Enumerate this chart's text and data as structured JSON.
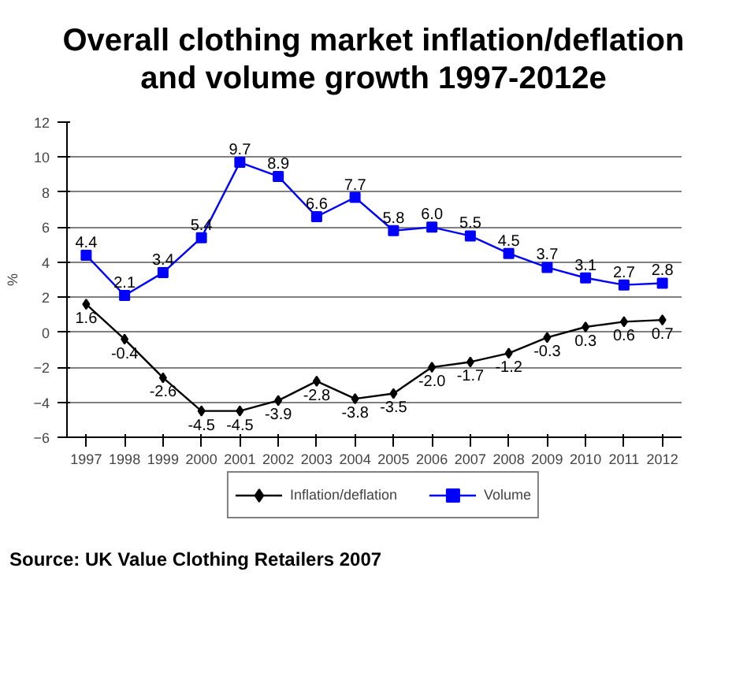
{
  "chart_data": {
    "type": "line",
    "title": "Overall clothing market inflation/deflation\nand volume growth 1997-2012e",
    "ylabel": "%",
    "categories": [
      "1997",
      "1998",
      "1999",
      "2000",
      "2001",
      "2002",
      "2003",
      "2004",
      "2005",
      "2006",
      "2007",
      "2008",
      "2009",
      "2010",
      "2011",
      "2012"
    ],
    "series": [
      {
        "name": "Inflation/deflation",
        "color": "#000000",
        "marker": "diamond",
        "values": [
          1.6,
          -0.4,
          -2.6,
          -4.5,
          -4.5,
          -3.9,
          -2.8,
          -3.8,
          -3.5,
          -2.0,
          -1.7,
          -1.2,
          -0.3,
          0.3,
          0.6,
          0.7
        ],
        "value_labels": [
          "1.6",
          "-0.4",
          "-2.6",
          "-4.5",
          "-4.5",
          "-3.9",
          "-2.8",
          "-3.8",
          "-3.5",
          "-2.0",
          "-1.7",
          "-1.2",
          "-0.3",
          "0.3",
          "0.6",
          "0.7"
        ]
      },
      {
        "name": "Volume",
        "color": "#0000ff",
        "marker": "square",
        "values": [
          4.4,
          2.1,
          3.4,
          5.4,
          9.7,
          8.9,
          6.6,
          7.7,
          5.8,
          6.0,
          5.5,
          4.5,
          3.7,
          3.1,
          2.7,
          2.8
        ],
        "value_labels": [
          "4.4",
          "2.1",
          "3.4",
          "5.4",
          "9.7",
          "8.9",
          "6.6",
          "7.7",
          "5.8",
          "6.0",
          "5.5",
          "4.5",
          "3.7",
          "3.1",
          "2.7",
          "2.8"
        ]
      }
    ],
    "ylim": [
      -6,
      12
    ],
    "yticks": [
      -6,
      -4,
      -2,
      0,
      2,
      4,
      6,
      8,
      10,
      12
    ],
    "grid": "y",
    "legend": "bottom",
    "line_style": "solid",
    "annotations": [
      "Source: UK Value Clothing Retailers 2007"
    ]
  }
}
